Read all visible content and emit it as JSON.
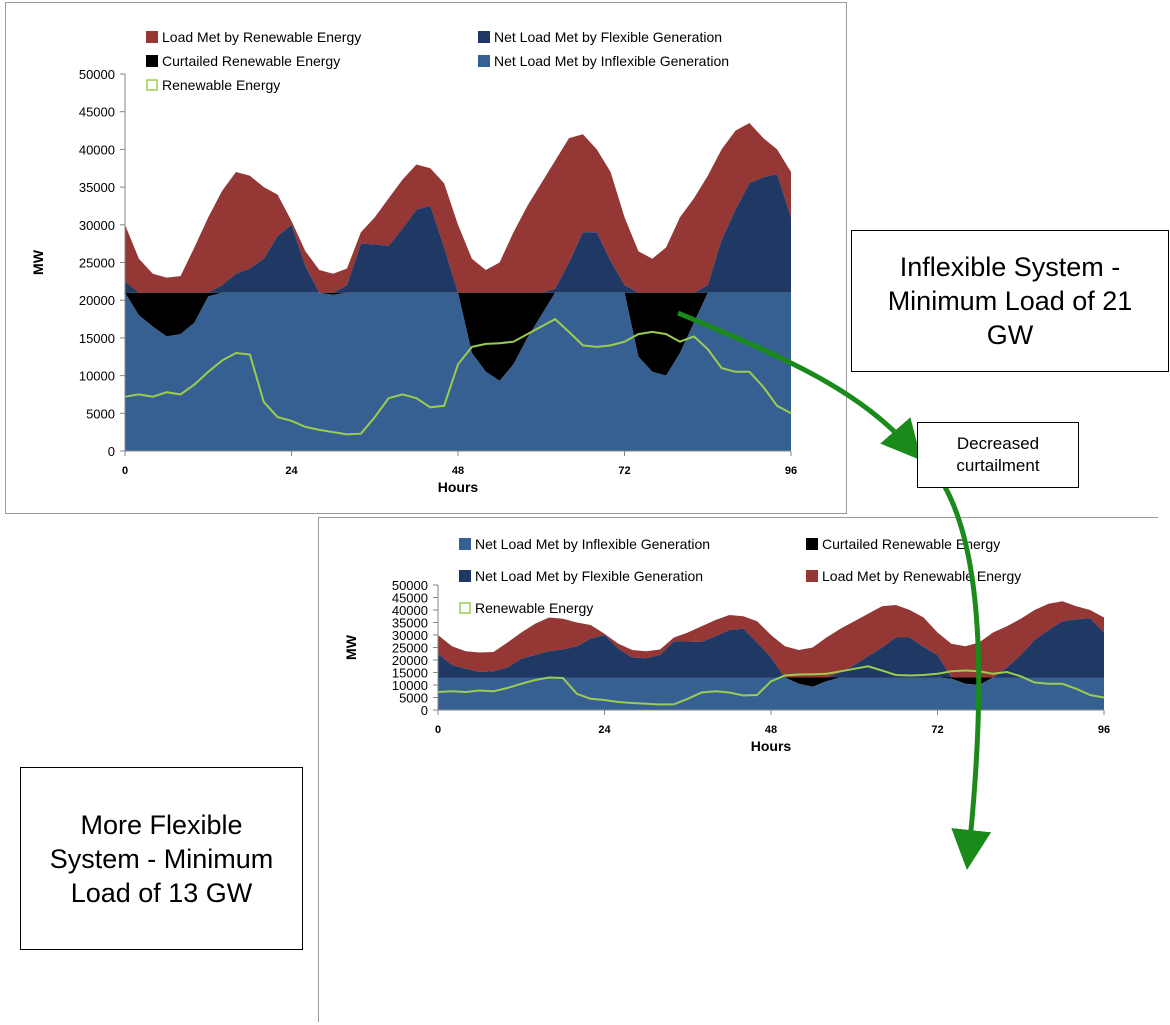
{
  "colors": {
    "renewable_met": "#953735",
    "flexible": "#1f3864",
    "curtailed": "#000000",
    "inflexible": "#376092",
    "renewable_line": "#9bcc50",
    "arrow": "#1a8b1a"
  },
  "callouts": {
    "inflexible": "Inflexible System - Minimum Load of 21 GW",
    "flexible": "More Flexible System - Minimum Load of 13 GW",
    "curtailment": "Decreased curtailment"
  },
  "chart_data": [
    {
      "type": "area",
      "title": "",
      "xlabel": "Hours",
      "ylabel": "MW",
      "xlim": [
        0,
        96
      ],
      "ylim": [
        0,
        50000
      ],
      "x_ticks": [
        0,
        24,
        48,
        72,
        96
      ],
      "y_ticks": [
        0,
        5000,
        10000,
        15000,
        20000,
        25000,
        30000,
        35000,
        40000,
        45000,
        50000
      ],
      "minimum_load": 21000,
      "legend_position": "top",
      "legend": [
        {
          "label": "Load Met by Renewable Energy",
          "marker": "square",
          "color": "#953735"
        },
        {
          "label": "Net Load Met by Flexible Generation",
          "marker": "square",
          "color": "#1f3864"
        },
        {
          "label": "Curtailed Renewable Energy",
          "marker": "square",
          "color": "#000000"
        },
        {
          "label": "Net Load Met by Inflexible Generation",
          "marker": "square",
          "color": "#376092"
        },
        {
          "label": "Renewable Energy",
          "marker": "hollow",
          "color": "#9bcc50"
        }
      ],
      "x": [
        0,
        2,
        4,
        6,
        8,
        10,
        12,
        14,
        16,
        18,
        20,
        22,
        24,
        26,
        28,
        30,
        32,
        34,
        36,
        38,
        40,
        42,
        44,
        46,
        48,
        50,
        52,
        54,
        56,
        58,
        60,
        62,
        64,
        66,
        68,
        70,
        72,
        74,
        76,
        78,
        80,
        82,
        84,
        86,
        88,
        90,
        92,
        94,
        96
      ],
      "series": [
        {
          "name": "Load",
          "values": [
            30000,
            25500,
            23500,
            23000,
            23200,
            27000,
            31000,
            34500,
            37000,
            36500,
            35000,
            34000,
            30500,
            26500,
            24000,
            23500,
            24200,
            29000,
            31000,
            33500,
            36000,
            38000,
            37500,
            35500,
            30000,
            25500,
            24000,
            25000,
            29000,
            32500,
            35500,
            38500,
            41500,
            42000,
            40000,
            37000,
            31000,
            26500,
            25500,
            27000,
            31000,
            33500,
            36500,
            40000,
            42500,
            43500,
            41500,
            40000,
            37000
          ]
        },
        {
          "name": "Net Load",
          "values": [
            22500,
            18000,
            16500,
            15200,
            15500,
            17000,
            20500,
            22000,
            23500,
            24200,
            25500,
            28500,
            30000,
            24500,
            21000,
            20700,
            22000,
            27500,
            27400,
            27200,
            29500,
            32000,
            32500,
            27000,
            21000,
            13000,
            10500,
            9300,
            11500,
            15000,
            18000,
            21500,
            25000,
            29000,
            29000,
            25200,
            22000,
            12500,
            10500,
            10000,
            13000,
            17000,
            22000,
            28000,
            32000,
            35500,
            36300,
            36700,
            31000
          ]
        },
        {
          "name": "Renewable Energy",
          "values": [
            7200,
            7500,
            7200,
            7800,
            7500,
            8800,
            10500,
            12000,
            13000,
            12800,
            6500,
            4500,
            4000,
            3200,
            2800,
            2500,
            2200,
            2300,
            4500,
            7000,
            7500,
            7000,
            5800,
            6000,
            11500,
            13800,
            14200,
            14300,
            14500,
            15500,
            16500,
            17500,
            15800,
            14000,
            13800,
            14000,
            14500,
            15500,
            15800,
            15500,
            14500,
            15200,
            13500,
            11000,
            10500,
            10500,
            8500,
            6000,
            5000
          ]
        }
      ]
    },
    {
      "type": "area",
      "title": "",
      "xlabel": "Hours",
      "ylabel": "MW",
      "xlim": [
        0,
        96
      ],
      "ylim": [
        0,
        50000
      ],
      "x_ticks": [
        0,
        24,
        48,
        72,
        96
      ],
      "y_ticks": [
        0,
        5000,
        10000,
        15000,
        20000,
        25000,
        30000,
        35000,
        40000,
        45000,
        50000
      ],
      "minimum_load": 13000,
      "legend_position": "top",
      "legend": [
        {
          "label": "Net Load Met by Inflexible Generation",
          "marker": "square",
          "color": "#376092"
        },
        {
          "label": "Curtailed Renewable Energy",
          "marker": "square",
          "color": "#000000"
        },
        {
          "label": "Net Load Met by Flexible Generation",
          "marker": "square",
          "color": "#1f3864"
        },
        {
          "label": "Load Met by Renewable Energy",
          "marker": "square",
          "color": "#953735"
        },
        {
          "label": "Renewable Energy",
          "marker": "hollow",
          "color": "#9bcc50"
        }
      ],
      "x": [
        0,
        2,
        4,
        6,
        8,
        10,
        12,
        14,
        16,
        18,
        20,
        22,
        24,
        26,
        28,
        30,
        32,
        34,
        36,
        38,
        40,
        42,
        44,
        46,
        48,
        50,
        52,
        54,
        56,
        58,
        60,
        62,
        64,
        66,
        68,
        70,
        72,
        74,
        76,
        78,
        80,
        82,
        84,
        86,
        88,
        90,
        92,
        94,
        96
      ],
      "series": [
        {
          "name": "Load",
          "values": [
            30000,
            25500,
            23500,
            23000,
            23200,
            27000,
            31000,
            34500,
            37000,
            36500,
            35000,
            34000,
            30500,
            26500,
            24000,
            23500,
            24200,
            29000,
            31000,
            33500,
            36000,
            38000,
            37500,
            35500,
            30000,
            25500,
            24000,
            25000,
            29000,
            32500,
            35500,
            38500,
            41500,
            42000,
            40000,
            37000,
            31000,
            26500,
            25500,
            27000,
            31000,
            33500,
            36500,
            40000,
            42500,
            43500,
            41500,
            40000,
            37000
          ]
        },
        {
          "name": "Net Load",
          "values": [
            22500,
            18000,
            16500,
            15200,
            15500,
            17000,
            20500,
            22000,
            23500,
            24200,
            25500,
            28500,
            30000,
            24500,
            21000,
            20700,
            22000,
            27500,
            27400,
            27200,
            29500,
            32000,
            32500,
            27000,
            21000,
            13000,
            10500,
            9300,
            11500,
            15000,
            18000,
            21500,
            25000,
            29000,
            29000,
            25200,
            22000,
            12500,
            10500,
            10000,
            13000,
            17000,
            22000,
            28000,
            32000,
            35500,
            36300,
            36700,
            31000
          ]
        },
        {
          "name": "Renewable Energy",
          "values": [
            7200,
            7500,
            7200,
            7800,
            7500,
            8800,
            10500,
            12000,
            13000,
            12800,
            6500,
            4500,
            4000,
            3200,
            2800,
            2500,
            2200,
            2300,
            4500,
            7000,
            7500,
            7000,
            5800,
            6000,
            11500,
            13800,
            14200,
            14300,
            14500,
            15500,
            16500,
            17500,
            15800,
            14000,
            13800,
            14000,
            14500,
            15500,
            15800,
            15500,
            14500,
            15200,
            13500,
            11000,
            10500,
            10500,
            8500,
            6000,
            5000
          ]
        }
      ]
    }
  ]
}
